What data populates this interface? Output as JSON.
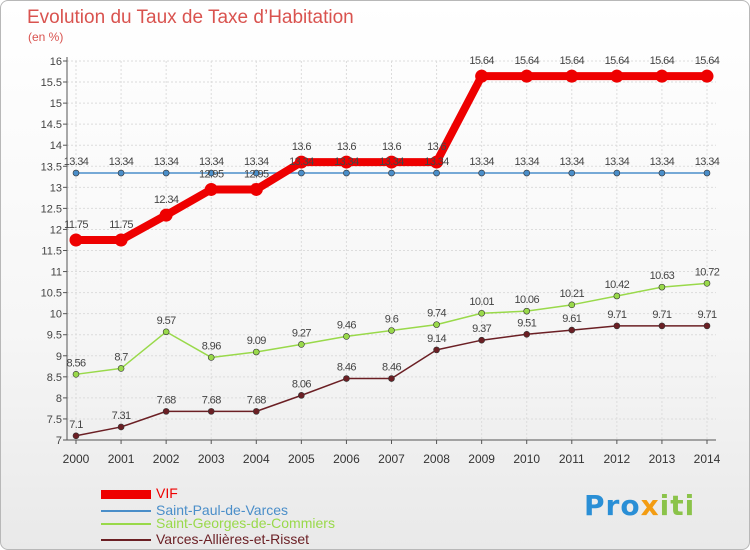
{
  "chart_data": {
    "type": "line",
    "title": "Evolution du Taux de Taxe d’Habitation",
    "subtitle": "(en %)",
    "x": [
      "2000",
      "2001",
      "2002",
      "2003",
      "2004",
      "2005",
      "2006",
      "2007",
      "2008",
      "2009",
      "2010",
      "2011",
      "2012",
      "2013",
      "2014"
    ],
    "ylim": [
      7,
      16
    ],
    "yticks": [
      "7",
      "7.5",
      "8",
      "8.5",
      "9",
      "9.5",
      "10",
      "10.5",
      "11",
      "11.5",
      "12",
      "12.5",
      "13",
      "13.5",
      "14",
      "14.5",
      "15",
      "15.5",
      "16"
    ],
    "grid": true,
    "legend_position": "bottom-left",
    "series": [
      {
        "name": "VIF",
        "color": "#ee0000",
        "values": [
          11.75,
          11.75,
          12.34,
          12.95,
          12.95,
          13.6,
          13.6,
          13.6,
          13.6,
          15.64,
          15.64,
          15.64,
          15.64,
          15.64,
          15.64
        ],
        "labels": [
          "11.75",
          "11.75",
          "12.34",
          "12.95",
          "12.95",
          "13.6",
          "13.6",
          "13.6",
          "13.6",
          "15.64",
          "15.64",
          "15.64",
          "15.64",
          "15.64",
          "15.64"
        ]
      },
      {
        "name": "Saint-Paul-de-Varces",
        "color": "#4a8ec9",
        "values": [
          13.34,
          13.34,
          13.34,
          13.34,
          13.34,
          13.34,
          13.34,
          13.34,
          13.34,
          13.34,
          13.34,
          13.34,
          13.34,
          13.34,
          13.34
        ],
        "labels": [
          "13.34",
          "13.34",
          "13.34",
          "13.34",
          "13.34",
          "13.34",
          "13.34",
          "13.34",
          "13.34",
          "13.34",
          "13.34",
          "13.34",
          "13.34",
          "13.34",
          "13.34"
        ]
      },
      {
        "name": "Saint-Georges-de-Commiers",
        "color": "#99d94a",
        "values": [
          8.56,
          8.7,
          9.57,
          8.96,
          9.09,
          9.27,
          9.46,
          9.6,
          9.74,
          10.01,
          10.06,
          10.21,
          10.42,
          10.63,
          10.72
        ],
        "labels": [
          "8.56",
          "8.7",
          "9.57",
          "8.96",
          "9.09",
          "9.27",
          "9.46",
          "9.6",
          "9.74",
          "10.01",
          "10.06",
          "10.21",
          "10.42",
          "10.63",
          "10.72"
        ]
      },
      {
        "name": "Varces-Allières-et-Risset",
        "color": "#6b1f24",
        "values": [
          7.1,
          7.31,
          7.68,
          7.68,
          7.68,
          8.06,
          8.46,
          8.46,
          9.14,
          9.37,
          9.51,
          9.61,
          9.71,
          9.71,
          9.71
        ],
        "labels": [
          "7.1",
          "7.31",
          "7.68",
          "7.68",
          "7.68",
          "8.06",
          "8.46",
          "8.46",
          "9.14",
          "9.37",
          "9.51",
          "9.61",
          "9.71",
          "9.71",
          "9.71"
        ]
      }
    ]
  },
  "watermark": {
    "p1": "Pro",
    "p2": "x",
    "p3": "iti"
  }
}
